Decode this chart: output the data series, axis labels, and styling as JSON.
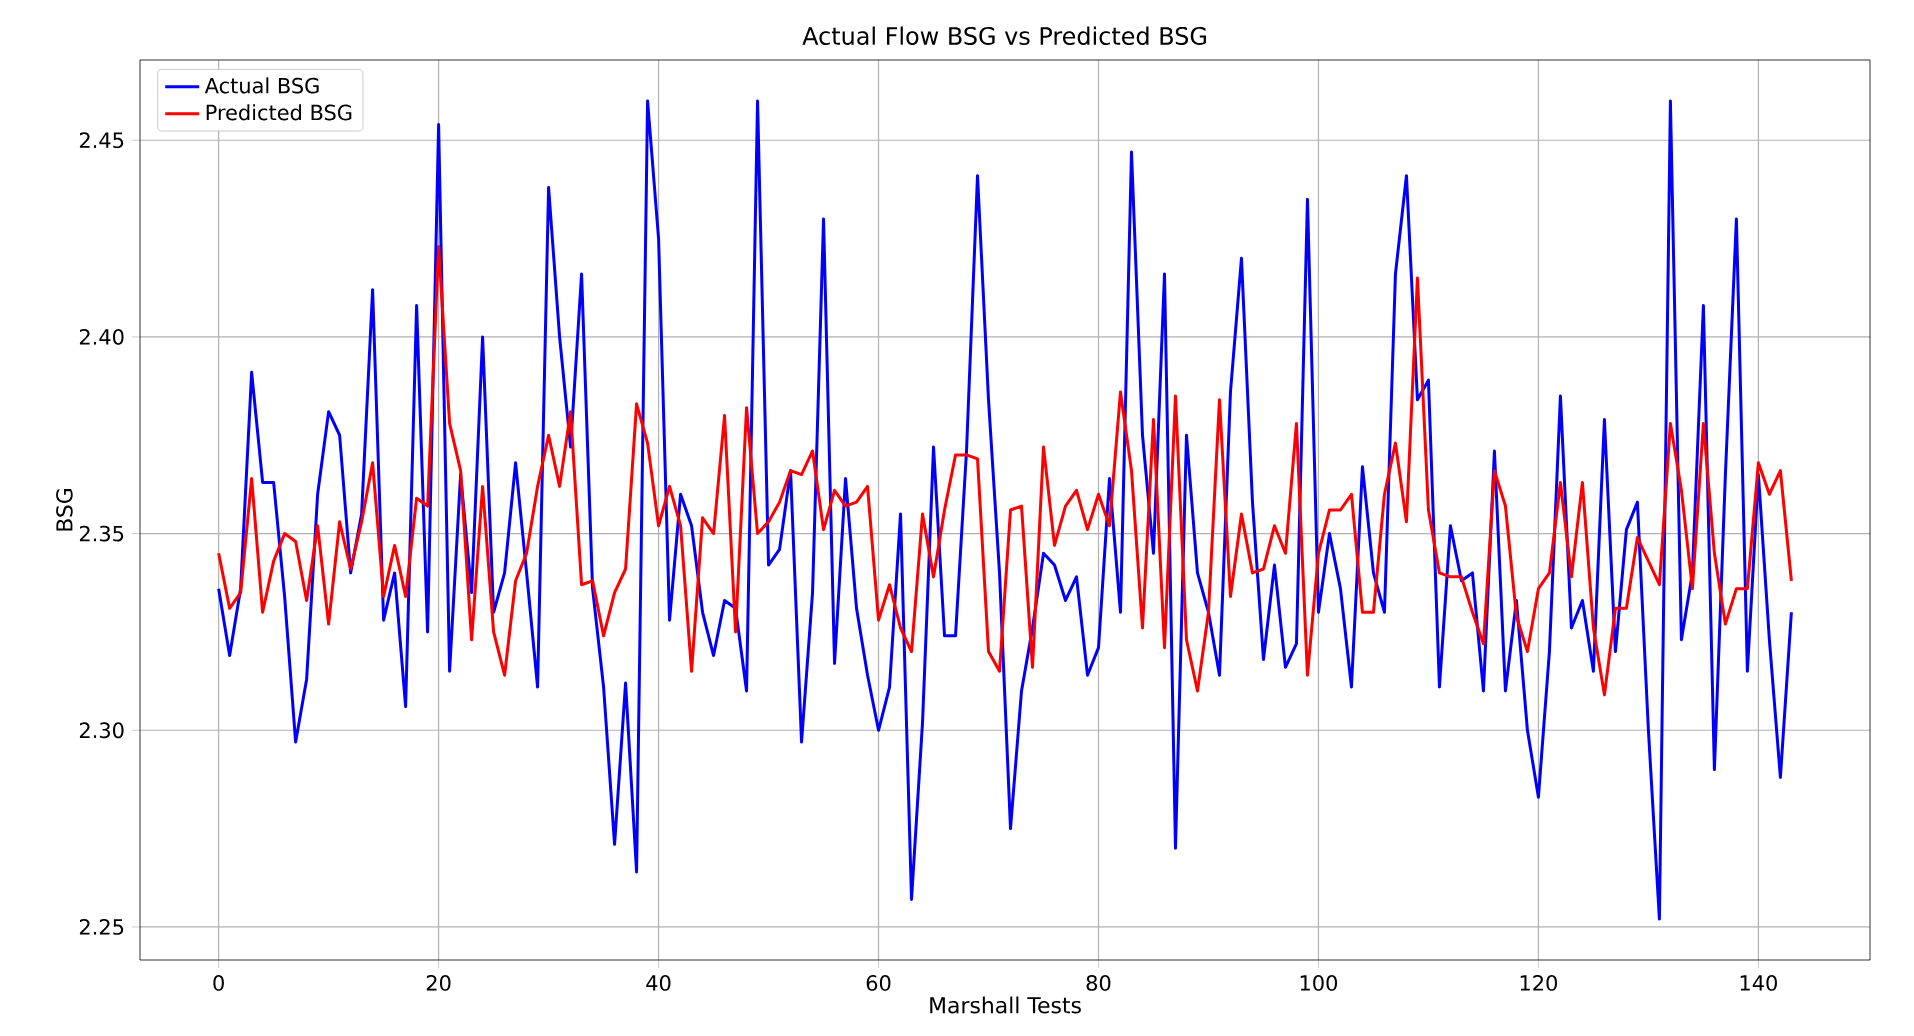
{
  "chart_data": {
    "type": "line",
    "title": "Actual Flow BSG vs Predicted BSG",
    "xlabel": "Marshall Tests",
    "ylabel": "BSG",
    "x": [
      0,
      1,
      2,
      3,
      4,
      5,
      6,
      7,
      8,
      9,
      10,
      11,
      12,
      13,
      14,
      15,
      16,
      17,
      18,
      19,
      20,
      21,
      22,
      23,
      24,
      25,
      26,
      27,
      28,
      29,
      30,
      31,
      32,
      33,
      34,
      35,
      36,
      37,
      38,
      39,
      40,
      41,
      42,
      43,
      44,
      45,
      46,
      47,
      48,
      49,
      50,
      51,
      52,
      53,
      54,
      55,
      56,
      57,
      58,
      59,
      60,
      61,
      62,
      63,
      64,
      65,
      66,
      67,
      68,
      69,
      70,
      71,
      72,
      73,
      74,
      75,
      76,
      77,
      78,
      79,
      80,
      81,
      82,
      83,
      84,
      85,
      86,
      87,
      88,
      89,
      90,
      91,
      92,
      93,
      94,
      95,
      96,
      97,
      98,
      99,
      100,
      101,
      102,
      103,
      104,
      105,
      106,
      107,
      108,
      109,
      110,
      111,
      112,
      113,
      114,
      115,
      116,
      117,
      118,
      119,
      120,
      121,
      122,
      123,
      124,
      125,
      126,
      127,
      128,
      129,
      130,
      131,
      132,
      133,
      134,
      135,
      136,
      137,
      138,
      139,
      140,
      141,
      142,
      143
    ],
    "series": [
      {
        "name": "Actual BSG",
        "color": "#0000ff",
        "values": [
          2.336,
          2.319,
          2.336,
          2.391,
          2.363,
          2.363,
          2.334,
          2.297,
          2.313,
          2.36,
          2.381,
          2.375,
          2.34,
          2.355,
          2.412,
          2.328,
          2.34,
          2.306,
          2.408,
          2.325,
          2.454,
          2.315,
          2.365,
          2.335,
          2.4,
          2.33,
          2.34,
          2.368,
          2.34,
          2.311,
          2.438,
          2.4,
          2.372,
          2.416,
          2.336,
          2.311,
          2.271,
          2.312,
          2.264,
          2.46,
          2.425,
          2.328,
          2.36,
          2.352,
          2.33,
          2.319,
          2.333,
          2.331,
          2.31,
          2.46,
          2.342,
          2.346,
          2.366,
          2.297,
          2.335,
          2.43,
          2.317,
          2.364,
          2.331,
          2.314,
          2.3,
          2.311,
          2.355,
          2.257,
          2.302,
          2.372,
          2.324,
          2.324,
          2.371,
          2.441,
          2.384,
          2.34,
          2.275,
          2.31,
          2.326,
          2.345,
          2.342,
          2.333,
          2.339,
          2.314,
          2.321,
          2.364,
          2.33,
          2.447,
          2.375,
          2.345,
          2.416,
          2.27,
          2.375,
          2.34,
          2.33,
          2.314,
          2.386,
          2.42,
          2.358,
          2.318,
          2.342,
          2.316,
          2.322,
          2.435,
          2.33,
          2.35,
          2.336,
          2.311,
          2.367,
          2.34,
          2.33,
          2.416,
          2.441,
          2.384,
          2.389,
          2.311,
          2.352,
          2.338,
          2.34,
          2.31,
          2.371,
          2.31,
          2.333,
          2.3,
          2.283,
          2.32,
          2.385,
          2.326,
          2.333,
          2.315,
          2.379,
          2.32,
          2.351,
          2.358,
          2.3,
          2.252,
          2.46,
          2.323,
          2.34,
          2.408,
          2.29,
          2.365,
          2.43,
          2.315,
          2.365,
          2.323,
          2.288,
          2.33
        ]
      },
      {
        "name": "Predicted BSG",
        "color": "#ff0000",
        "values": [
          2.345,
          2.331,
          2.335,
          2.364,
          2.33,
          2.343,
          2.35,
          2.348,
          2.333,
          2.352,
          2.327,
          2.353,
          2.341,
          2.353,
          2.368,
          2.334,
          2.347,
          2.334,
          2.359,
          2.357,
          2.423,
          2.378,
          2.366,
          2.323,
          2.362,
          2.325,
          2.314,
          2.338,
          2.345,
          2.362,
          2.375,
          2.362,
          2.381,
          2.337,
          2.338,
          2.324,
          2.335,
          2.341,
          2.383,
          2.373,
          2.352,
          2.362,
          2.352,
          2.315,
          2.354,
          2.35,
          2.38,
          2.325,
          2.382,
          2.35,
          2.353,
          2.358,
          2.366,
          2.365,
          2.371,
          2.351,
          2.361,
          2.357,
          2.358,
          2.362,
          2.328,
          2.337,
          2.326,
          2.32,
          2.355,
          2.339,
          2.356,
          2.37,
          2.37,
          2.369,
          2.32,
          2.315,
          2.356,
          2.357,
          2.316,
          2.372,
          2.347,
          2.357,
          2.361,
          2.351,
          2.36,
          2.352,
          2.386,
          2.366,
          2.326,
          2.379,
          2.321,
          2.385,
          2.323,
          2.31,
          2.33,
          2.384,
          2.334,
          2.355,
          2.34,
          2.341,
          2.352,
          2.345,
          2.378,
          2.314,
          2.345,
          2.356,
          2.356,
          2.36,
          2.33,
          2.33,
          2.36,
          2.373,
          2.353,
          2.415,
          2.356,
          2.34,
          2.339,
          2.339,
          2.33,
          2.322,
          2.366,
          2.357,
          2.329,
          2.32,
          2.336,
          2.34,
          2.363,
          2.339,
          2.363,
          2.326,
          2.309,
          2.331,
          2.331,
          2.349,
          2.343,
          2.337,
          2.378,
          2.361,
          2.336,
          2.378,
          2.345,
          2.327,
          2.336,
          2.336,
          2.368,
          2.36,
          2.366,
          2.338
        ]
      }
    ],
    "xlim": [
      -7.15,
      150.15
    ],
    "ylim": [
      2.2416,
      2.4704
    ],
    "xticks": [
      0,
      20,
      40,
      60,
      80,
      100,
      120,
      140
    ],
    "yticks": [
      2.25,
      {
        "value": 2.3,
        "label": "2.30"
      },
      2.35,
      {
        "value": 2.4,
        "label": "2.40"
      },
      2.45
    ],
    "grid": true,
    "legend": "top left",
    "marker": "none",
    "line_style": "solid"
  }
}
